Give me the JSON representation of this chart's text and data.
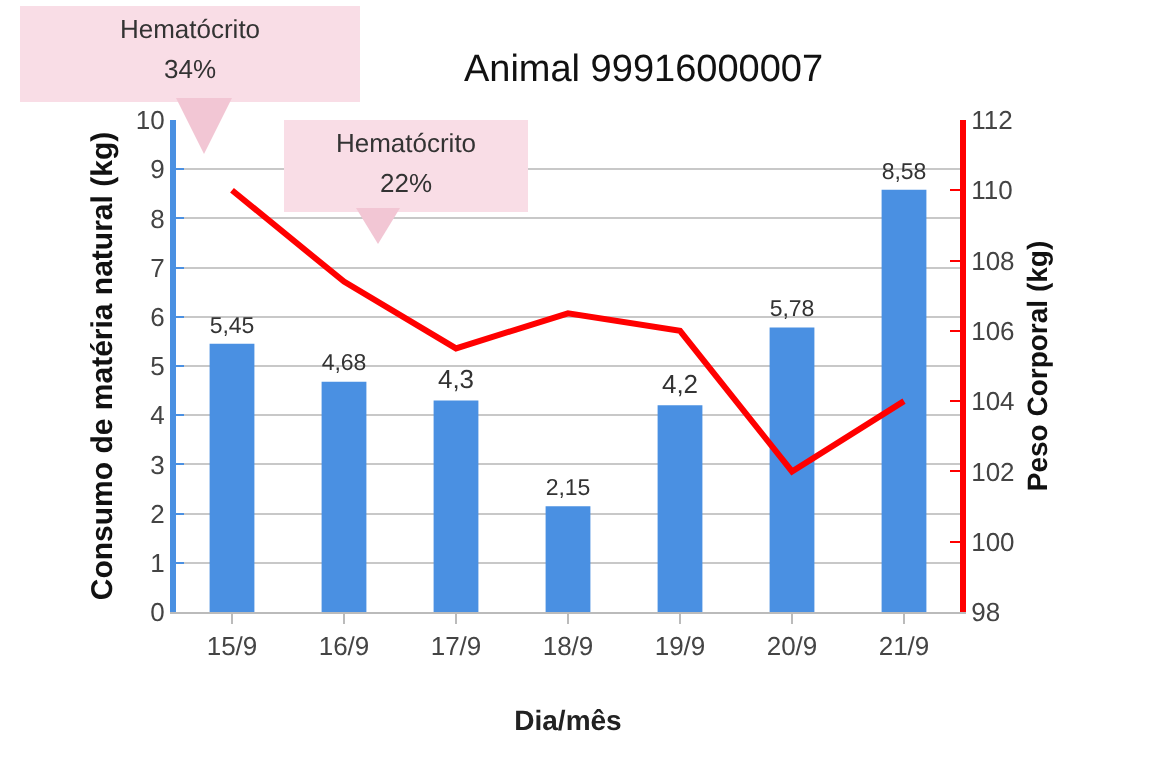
{
  "chart_data": {
    "type": "bar",
    "title": "Animal 99916000007",
    "xlabel": "Dia/mês",
    "ylabel": "Consumo de matéria natural (kg)",
    "y2label": "Peso Corporal (kg)",
    "categories": [
      "15/9",
      "16/9",
      "17/9",
      "18/9",
      "19/9",
      "20/9",
      "21/9"
    ],
    "series": [
      {
        "color": "#4a90e2",
        "values": [
          5.45,
          4.68,
          4.3,
          2.15,
          4.2,
          5.78,
          8.58
        ],
        "value_labels": [
          "5,45",
          "4,68",
          "4,3",
          "2,15",
          "4,2",
          "5,78",
          "8,58"
        ]
      },
      {
        "type": "line",
        "axis": "y2",
        "color": "#ff0000",
        "values": [
          110,
          107.4,
          105.5,
          106.5,
          106,
          102,
          104
        ]
      }
    ],
    "ylim": [
      0,
      10
    ],
    "yticks": [
      0,
      1,
      2,
      3,
      4,
      5,
      6,
      7,
      8,
      9,
      10
    ],
    "y2lim": [
      98,
      112
    ],
    "y2ticks": [
      98,
      100,
      102,
      104,
      106,
      108,
      110,
      112
    ],
    "grid": "y",
    "legend": false,
    "marker": "none",
    "line_style": "solid",
    "annotations": [
      "Hematócrito\n34%",
      "Hematócrito\n22%"
    ]
  }
}
